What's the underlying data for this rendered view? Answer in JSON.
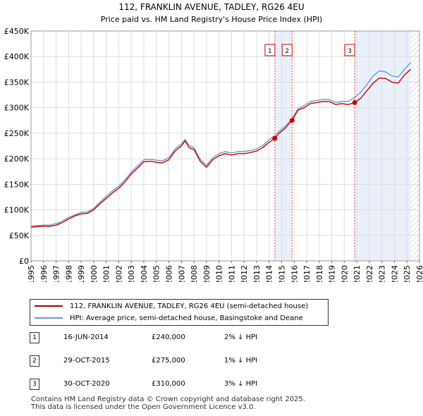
{
  "chart_data": {
    "type": "line",
    "title": "112, FRANKLIN AVENUE, TADLEY, RG26 4EU",
    "subtitle": "Price paid vs. HM Land Registry's House Price Index (HPI)",
    "xlim": [
      1995,
      2026
    ],
    "ylim": [
      0,
      450000
    ],
    "x_ticks": [
      "1995",
      "1996",
      "1997",
      "1998",
      "1999",
      "2000",
      "2001",
      "2002",
      "2003",
      "2004",
      "2005",
      "2006",
      "2007",
      "2008",
      "2009",
      "2010",
      "2011",
      "2012",
      "2013",
      "2014",
      "2015",
      "2016",
      "2017",
      "2018",
      "2019",
      "2020",
      "2021",
      "2022",
      "2023",
      "2024",
      "2025",
      "2026"
    ],
    "y_ticks": [
      {
        "value": 0,
        "label": "£0"
      },
      {
        "value": 50000,
        "label": "£50K"
      },
      {
        "value": 100000,
        "label": "£100K"
      },
      {
        "value": 150000,
        "label": "£150K"
      },
      {
        "value": 200000,
        "label": "£200K"
      },
      {
        "value": 250000,
        "label": "£250K"
      },
      {
        "value": 300000,
        "label": "£300K"
      },
      {
        "value": 350000,
        "label": "£350K"
      },
      {
        "value": 400000,
        "label": "£400K"
      },
      {
        "value": 450000,
        "label": "£450K"
      }
    ],
    "grid": true,
    "series": [
      {
        "name": "112, FRANKLIN AVENUE, TADLEY, RG26 4EU (semi-detached house)",
        "color": "#cc0000",
        "points": [
          [
            1995,
            66000
          ],
          [
            1995.5,
            67000
          ],
          [
            1996,
            68000
          ],
          [
            1996.5,
            67500
          ],
          [
            1997,
            70000
          ],
          [
            1997.5,
            75000
          ],
          [
            1998,
            82000
          ],
          [
            1998.5,
            88000
          ],
          [
            1999,
            92000
          ],
          [
            1999.5,
            93000
          ],
          [
            2000,
            100000
          ],
          [
            2000.5,
            112000
          ],
          [
            2001,
            122000
          ],
          [
            2001.5,
            133000
          ],
          [
            2002,
            142000
          ],
          [
            2002.5,
            155000
          ],
          [
            2003,
            170000
          ],
          [
            2003.5,
            182000
          ],
          [
            2004,
            194000
          ],
          [
            2004.5,
            195000
          ],
          [
            2005,
            193000
          ],
          [
            2005.5,
            192000
          ],
          [
            2006,
            198000
          ],
          [
            2006.5,
            215000
          ],
          [
            2007,
            225000
          ],
          [
            2007.3,
            235000
          ],
          [
            2007.6,
            222000
          ],
          [
            2008,
            218000
          ],
          [
            2008.5,
            195000
          ],
          [
            2009,
            183000
          ],
          [
            2009.5,
            198000
          ],
          [
            2010,
            206000
          ],
          [
            2010.5,
            210000
          ],
          [
            2011,
            207000
          ],
          [
            2011.5,
            210000
          ],
          [
            2012,
            210000
          ],
          [
            2012.5,
            212000
          ],
          [
            2013,
            215000
          ],
          [
            2013.5,
            222000
          ],
          [
            2014,
            232000
          ],
          [
            2014.46,
            240000
          ],
          [
            2014.8,
            250000
          ],
          [
            2015.3,
            260000
          ],
          [
            2015.83,
            275000
          ],
          [
            2016.3,
            295000
          ],
          [
            2016.8,
            300000
          ],
          [
            2017.3,
            308000
          ],
          [
            2017.8,
            310000
          ],
          [
            2018.3,
            312000
          ],
          [
            2018.8,
            312000
          ],
          [
            2019.3,
            306000
          ],
          [
            2019.8,
            308000
          ],
          [
            2020.3,
            306000
          ],
          [
            2020.83,
            310000
          ],
          [
            2021.3,
            318000
          ],
          [
            2021.8,
            333000
          ],
          [
            2022.3,
            348000
          ],
          [
            2022.8,
            358000
          ],
          [
            2023.3,
            357000
          ],
          [
            2023.8,
            350000
          ],
          [
            2024.3,
            348000
          ],
          [
            2024.8,
            364000
          ],
          [
            2025.3,
            375000
          ]
        ]
      },
      {
        "name": "HPI: Average price, semi-detached house, Basingstoke and Deane",
        "color": "#6b9bd2",
        "points": [
          [
            1995,
            68000
          ],
          [
            1995.5,
            69000
          ],
          [
            1996,
            70000
          ],
          [
            1996.5,
            70000
          ],
          [
            1997,
            73000
          ],
          [
            1997.5,
            78000
          ],
          [
            1998,
            85000
          ],
          [
            1998.5,
            90000
          ],
          [
            1999,
            95000
          ],
          [
            1999.5,
            96000
          ],
          [
            2000,
            103000
          ],
          [
            2000.5,
            115000
          ],
          [
            2001,
            126000
          ],
          [
            2001.5,
            137000
          ],
          [
            2002,
            146000
          ],
          [
            2002.5,
            159000
          ],
          [
            2003,
            174000
          ],
          [
            2003.5,
            186000
          ],
          [
            2004,
            198000
          ],
          [
            2004.5,
            199000
          ],
          [
            2005,
            197000
          ],
          [
            2005.5,
            196000
          ],
          [
            2006,
            202000
          ],
          [
            2006.5,
            219000
          ],
          [
            2007,
            229000
          ],
          [
            2007.3,
            238000
          ],
          [
            2007.6,
            226000
          ],
          [
            2008,
            222000
          ],
          [
            2008.5,
            199000
          ],
          [
            2009,
            187000
          ],
          [
            2009.5,
            202000
          ],
          [
            2010,
            210000
          ],
          [
            2010.5,
            214000
          ],
          [
            2011,
            211000
          ],
          [
            2011.5,
            214000
          ],
          [
            2012,
            214000
          ],
          [
            2012.5,
            216000
          ],
          [
            2013,
            219000
          ],
          [
            2013.5,
            226000
          ],
          [
            2014,
            237000
          ],
          [
            2014.46,
            245000
          ],
          [
            2014.8,
            254000
          ],
          [
            2015.3,
            264000
          ],
          [
            2015.83,
            278000
          ],
          [
            2016.3,
            298000
          ],
          [
            2016.8,
            304000
          ],
          [
            2017.3,
            312000
          ],
          [
            2017.8,
            314000
          ],
          [
            2018.3,
            316000
          ],
          [
            2018.8,
            316000
          ],
          [
            2019.3,
            310000
          ],
          [
            2019.8,
            312000
          ],
          [
            2020.3,
            312000
          ],
          [
            2020.83,
            320000
          ],
          [
            2021.3,
            330000
          ],
          [
            2021.8,
            345000
          ],
          [
            2022.3,
            362000
          ],
          [
            2022.8,
            372000
          ],
          [
            2023.3,
            370000
          ],
          [
            2023.8,
            362000
          ],
          [
            2024.3,
            360000
          ],
          [
            2024.8,
            375000
          ],
          [
            2025.3,
            388000
          ]
        ]
      }
    ],
    "sales": [
      {
        "id": "1",
        "x": 2014.46,
        "price": 240000
      },
      {
        "id": "2",
        "x": 2015.83,
        "price": 275000
      },
      {
        "id": "3",
        "x": 2020.83,
        "price": 310000
      }
    ],
    "shaded_ranges": [
      [
        2014.46,
        2015.83
      ],
      [
        2020.83,
        2025.3
      ]
    ],
    "hatched_range": [
      2025.3,
      2026
    ]
  },
  "legend": {
    "property_label": "112, FRANKLIN AVENUE, TADLEY, RG26 4EU (semi-detached house)",
    "hpi_label": "HPI: Average price, semi-detached house, Basingstoke and Deane",
    "property_color": "#aa0000",
    "hpi_color": "#6b9bd2"
  },
  "sales_table": [
    {
      "num": "1",
      "date": "16-JUN-2014",
      "price": "£240,000",
      "hpi": "2% ↓ HPI"
    },
    {
      "num": "2",
      "date": "29-OCT-2015",
      "price": "£275,000",
      "hpi": "1% ↓ HPI"
    },
    {
      "num": "3",
      "date": "30-OCT-2020",
      "price": "£310,000",
      "hpi": "3% ↓ HPI"
    }
  ],
  "footer": {
    "line1": "Contains HM Land Registry data © Crown copyright and database right 2025.",
    "line2": "This data is licensed under the Open Government Licence v3.0."
  }
}
